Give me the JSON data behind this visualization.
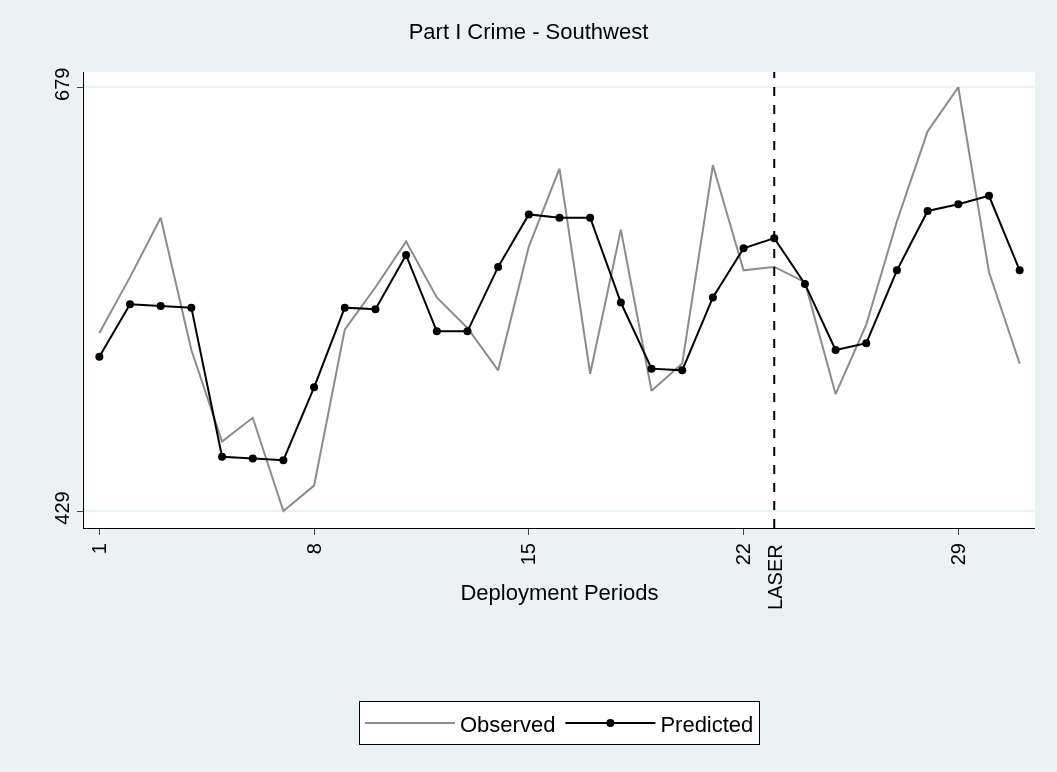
{
  "chart_data": {
    "type": "line",
    "title": "Part I Crime - Southwest",
    "xlabel": "Deployment Periods",
    "x": [
      1,
      2,
      3,
      4,
      5,
      6,
      7,
      8,
      9,
      10,
      11,
      12,
      13,
      14,
      15,
      16,
      17,
      18,
      19,
      20,
      21,
      22,
      23,
      24,
      25,
      26,
      27,
      28,
      29,
      30,
      31
    ],
    "series": [
      {
        "name": "Observed",
        "color": "#8c8c8c",
        "marker": "none",
        "values": [
          534,
          567,
          602,
          524,
          470,
          484,
          429,
          444,
          536,
          561,
          588,
          555,
          537,
          512,
          585,
          631,
          510,
          595,
          500,
          516,
          633,
          571,
          573,
          564,
          498,
          539,
          600,
          653,
          679,
          570,
          516
        ]
      },
      {
        "name": "Predicted",
        "color": "#000000",
        "marker": "circle",
        "values": [
          520,
          551,
          550,
          549,
          461,
          460,
          459,
          502,
          549,
          548,
          580,
          535,
          535,
          573,
          604,
          602,
          602,
          552,
          513,
          512,
          555,
          584,
          590,
          563,
          524,
          528,
          571,
          606,
          610,
          615,
          571
        ]
      }
    ],
    "xlim": [
      0.5,
      31.5
    ],
    "xticks": [
      1,
      8,
      15,
      22,
      29
    ],
    "ylim": [
      419,
      688
    ],
    "yticks": [
      429,
      679
    ],
    "grid": "y",
    "legend": "bottom",
    "line_style": "solid",
    "ref_lines": [
      {
        "axis": "x",
        "value": 23,
        "label": "LASER",
        "color": "#000000",
        "line_style": "dashed"
      }
    ]
  }
}
